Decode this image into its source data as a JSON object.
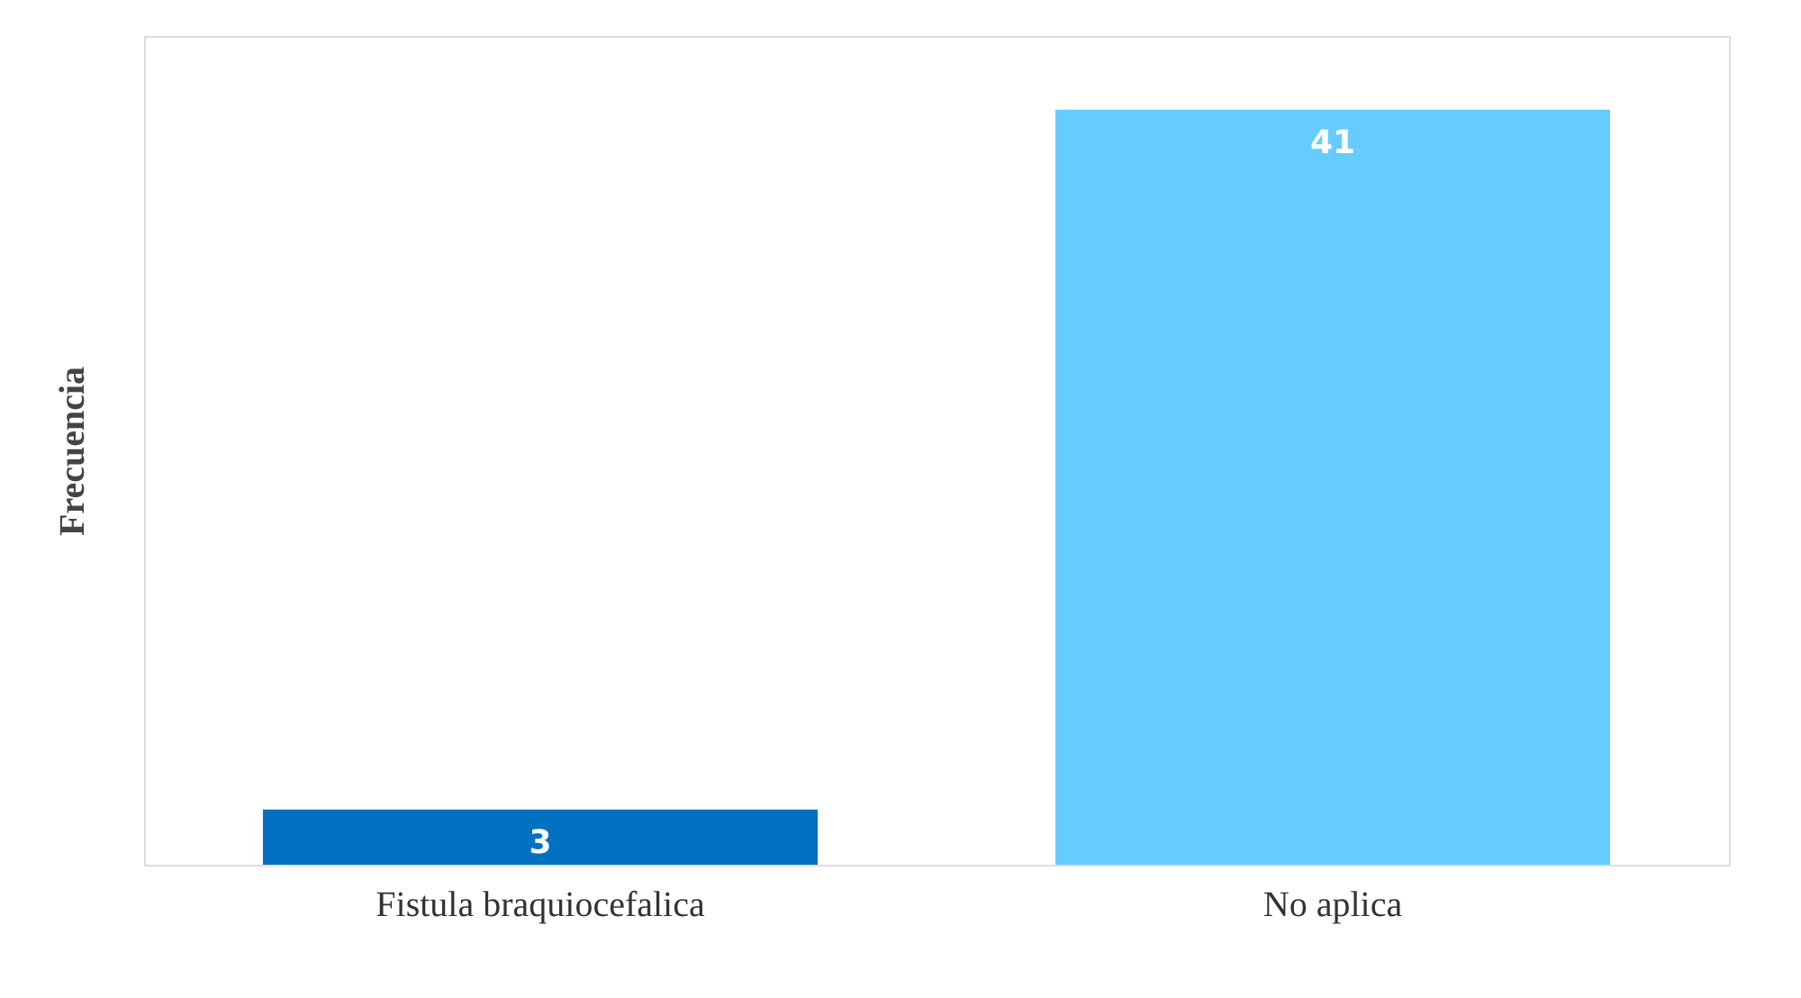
{
  "chart_data": {
    "type": "bar",
    "ylabel": "Frecuencia",
    "categories": [
      "Fistula braquiocefalica",
      "No aplica"
    ],
    "values": [
      3,
      41
    ],
    "colors": [
      "#0070c0",
      "#66ccff"
    ],
    "data_labels": true,
    "grid": false
  }
}
